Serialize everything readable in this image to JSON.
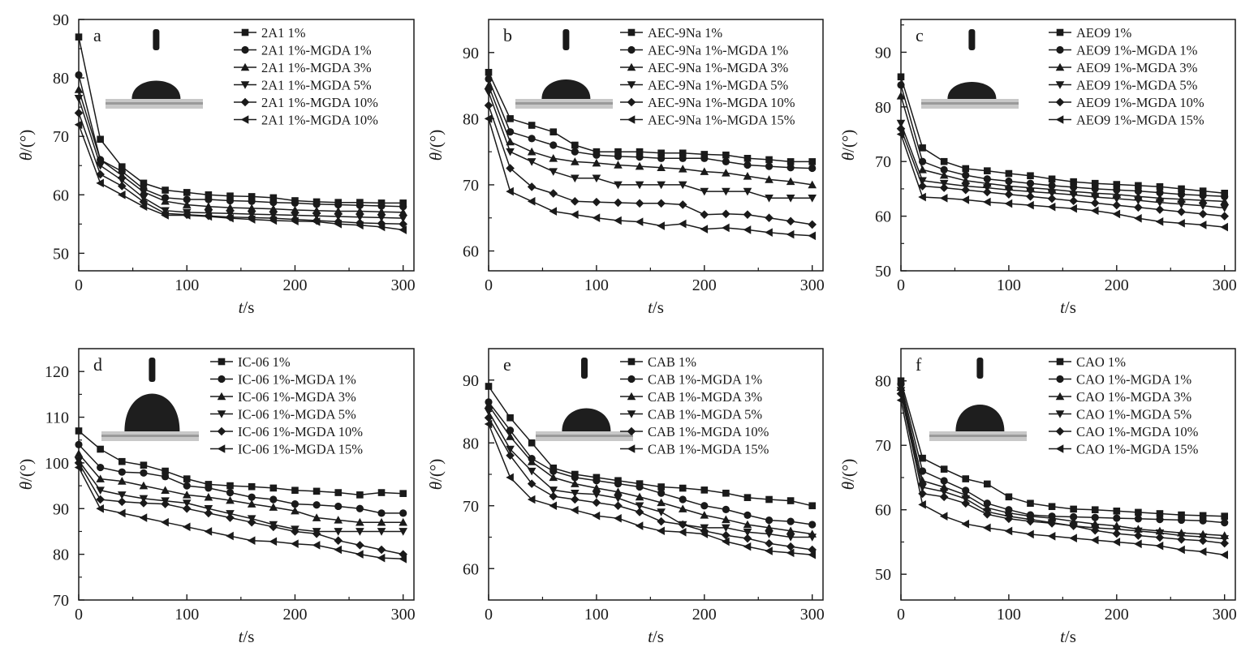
{
  "figure": {
    "panels_order": [
      "a",
      "b",
      "c",
      "d",
      "e",
      "f"
    ]
  },
  "chart_data": [
    {
      "type": "line",
      "panel_letter": "a",
      "xlabel_italic": "t",
      "xlabel_unit": "/s",
      "ylabel_italic": "θ",
      "ylabel_unit": "/(°)",
      "xlim": [
        0,
        310
      ],
      "ylim": [
        47,
        90
      ],
      "xticks": [
        0,
        100,
        200,
        300
      ],
      "yticks": [
        50,
        60,
        70,
        80,
        90
      ],
      "grid": false,
      "legend_position": "top-right",
      "x": [
        0,
        20,
        40,
        60,
        80,
        100,
        120,
        140,
        160,
        180,
        200,
        220,
        240,
        260,
        280,
        300
      ],
      "series": [
        {
          "name": "2A1 1%",
          "marker": "square",
          "values": [
            87,
            69.5,
            64.8,
            62,
            60.8,
            60.4,
            60,
            59.8,
            59.7,
            59.5,
            59,
            58.8,
            58.7,
            58.7,
            58.6,
            58.6
          ]
        },
        {
          "name": "2A1 1%-MGDA 1%",
          "marker": "circle",
          "values": [
            80.5,
            66,
            64,
            61,
            59.5,
            59.2,
            59.2,
            59.0,
            58.9,
            58.7,
            58.6,
            58.4,
            58.3,
            58.2,
            58.1,
            58
          ]
        },
        {
          "name": "2A1 1%-MGDA 3%",
          "marker": "triangle-up",
          "values": [
            78,
            66,
            63.3,
            60.5,
            58.9,
            58.3,
            58,
            57.8,
            57.7,
            57.6,
            57.4,
            57.3,
            57.2,
            57.2,
            57.1,
            57
          ]
        },
        {
          "name": "2A1 1%-MGDA 5%",
          "marker": "triangle-down",
          "values": [
            76.5,
            65,
            62.5,
            59.5,
            57.3,
            57,
            56.9,
            56.8,
            56.7,
            56.6,
            56.5,
            56.4,
            56.3,
            56.2,
            56.1,
            56
          ]
        },
        {
          "name": "2A1 1%-MGDA 10%",
          "marker": "diamond",
          "values": [
            74,
            63.5,
            61.5,
            58.8,
            56.8,
            56.6,
            56.4,
            56.2,
            56.1,
            56,
            55.8,
            55.6,
            55.4,
            55.2,
            55.1,
            55
          ]
        },
        {
          "name": "2A1 1%-MGDA 10%",
          "marker": "triangle-left",
          "values": [
            72,
            62,
            60,
            58,
            56.5,
            56.5,
            56.3,
            56.0,
            55.8,
            55.6,
            55.5,
            55.4,
            55,
            54.8,
            54.5,
            54
          ]
        }
      ]
    },
    {
      "type": "line",
      "panel_letter": "b",
      "xlabel_italic": "t",
      "xlabel_unit": "/s",
      "ylabel_italic": "θ",
      "ylabel_unit": "/(°)",
      "xlim": [
        0,
        310
      ],
      "ylim": [
        57,
        95
      ],
      "xticks": [
        0,
        100,
        200,
        300
      ],
      "yticks": [
        60,
        70,
        80,
        90
      ],
      "grid": false,
      "legend_position": "top-right",
      "x": [
        0,
        20,
        40,
        60,
        80,
        100,
        120,
        140,
        160,
        180,
        200,
        220,
        240,
        260,
        280,
        300
      ],
      "series": [
        {
          "name": "AEC-9Na 1%",
          "marker": "square",
          "values": [
            87,
            80,
            79,
            78,
            76,
            75,
            75,
            75,
            74.8,
            74.8,
            74.6,
            74.5,
            74,
            73.8,
            73.5,
            73.5
          ]
        },
        {
          "name": "AEC-9Na 1%-MGDA 1%",
          "marker": "circle",
          "values": [
            86,
            78,
            77,
            76,
            75,
            74.5,
            74.3,
            74.2,
            74,
            74,
            74,
            73.5,
            73,
            72.8,
            72.6,
            72.5
          ]
        },
        {
          "name": "AEC-9Na 1%-MGDA 3%",
          "marker": "triangle-up",
          "values": [
            85,
            76.5,
            75,
            74,
            73.5,
            73.3,
            73,
            72.8,
            72.6,
            72.4,
            72,
            71.8,
            71.3,
            70.8,
            70.5,
            70
          ]
        },
        {
          "name": "AEC-9Na 1%-MGDA 5%",
          "marker": "triangle-down",
          "values": [
            84,
            75,
            73.5,
            72,
            71,
            71,
            70,
            70,
            70,
            70,
            69,
            69,
            69,
            68,
            68,
            68
          ]
        },
        {
          "name": "AEC-9Na 1%-MGDA 10%",
          "marker": "diamond",
          "values": [
            82,
            72.5,
            69.7,
            68.7,
            67.5,
            67.4,
            67.3,
            67.2,
            67.2,
            67,
            65.5,
            65.6,
            65.5,
            65,
            64.5,
            64
          ]
        },
        {
          "name": "AEC-9Na 1%-MGDA 15%",
          "marker": "triangle-left",
          "values": [
            80,
            69,
            67.5,
            66,
            65.5,
            65,
            64.6,
            64.4,
            63.8,
            64.1,
            63.3,
            63.5,
            63.2,
            62.8,
            62.5,
            62.3
          ]
        }
      ]
    },
    {
      "type": "line",
      "panel_letter": "c",
      "xlabel_italic": "t",
      "xlabel_unit": "/s",
      "ylabel_italic": "θ",
      "ylabel_unit": "/(°)",
      "xlim": [
        0,
        310
      ],
      "ylim": [
        50,
        96
      ],
      "xticks": [
        0,
        100,
        200,
        300
      ],
      "yticks": [
        50,
        60,
        70,
        80,
        90
      ],
      "grid": false,
      "legend_position": "top-right",
      "x": [
        0,
        20,
        40,
        60,
        80,
        100,
        120,
        140,
        160,
        180,
        200,
        220,
        240,
        260,
        280,
        300
      ],
      "series": [
        {
          "name": "AEO9 1%",
          "marker": "square",
          "values": [
            85.5,
            72.5,
            70,
            68.7,
            68.3,
            67.8,
            67.4,
            66.8,
            66.3,
            66,
            65.8,
            65.6,
            65.4,
            65,
            64.6,
            64.2
          ]
        },
        {
          "name": "AEO9 1%-MGDA 1%",
          "marker": "circle",
          "values": [
            84,
            70,
            68.5,
            67.5,
            66.8,
            66.4,
            66,
            65.6,
            65.3,
            65,
            64.8,
            64.6,
            64.3,
            64,
            63.8,
            63.6
          ]
        },
        {
          "name": "AEO9 1%-MGDA 3%",
          "marker": "triangle-up",
          "values": [
            82,
            68.5,
            67.5,
            66.5,
            66,
            65.5,
            65.2,
            64.9,
            64.5,
            64.2,
            64,
            63.6,
            63.3,
            63.1,
            62.9,
            62.7
          ]
        },
        {
          "name": "AEO9 1%-MGDA 5%",
          "marker": "triangle-down",
          "values": [
            77,
            66.5,
            66,
            65.5,
            65.2,
            64.8,
            64.5,
            64.2,
            63.9,
            63.5,
            63.2,
            62.9,
            62.5,
            62.2,
            61.9,
            61.5
          ]
        },
        {
          "name": "AEO9 1%-MGDA 10%",
          "marker": "diamond",
          "values": [
            76,
            65.5,
            65.2,
            64.8,
            64.4,
            64,
            63.6,
            63.2,
            62.8,
            62.4,
            62,
            61.6,
            61.2,
            60.8,
            60.4,
            60
          ]
        },
        {
          "name": "AEO9 1%-MGDA 15%",
          "marker": "triangle-left",
          "values": [
            75,
            63.5,
            63.3,
            63,
            62.6,
            62.3,
            62,
            61.7,
            61.4,
            61,
            60.4,
            59.6,
            59,
            58.7,
            58.4,
            58
          ]
        }
      ]
    },
    {
      "type": "line",
      "panel_letter": "d",
      "xlabel_italic": "t",
      "xlabel_unit": "/s",
      "ylabel_italic": "θ",
      "ylabel_unit": "/(°)",
      "xlim": [
        0,
        310
      ],
      "ylim": [
        70,
        125
      ],
      "xticks": [
        0,
        100,
        200,
        300
      ],
      "yticks": [
        70,
        80,
        90,
        100,
        110,
        120
      ],
      "grid": false,
      "legend_position": "top-right",
      "x": [
        0,
        20,
        40,
        60,
        80,
        100,
        120,
        140,
        160,
        180,
        200,
        220,
        240,
        260,
        280,
        300
      ],
      "series": [
        {
          "name": "IC-06 1%",
          "marker": "square",
          "values": [
            107,
            103,
            100.3,
            99.5,
            98.2,
            96.5,
            95.3,
            95,
            94.8,
            94.5,
            94,
            93.8,
            93.5,
            93,
            93.5,
            93.3
          ]
        },
        {
          "name": "IC-06 1%-MGDA 1%",
          "marker": "circle",
          "values": [
            104,
            99,
            98,
            97.8,
            97,
            95,
            94.5,
            93.5,
            92.5,
            92,
            91,
            90.8,
            90.5,
            90,
            89,
            89
          ]
        },
        {
          "name": "IC-06 1%-MGDA 3%",
          "marker": "triangle-up",
          "values": [
            102,
            96.5,
            96,
            95,
            94,
            93,
            92.5,
            91.8,
            91,
            90.3,
            89.5,
            88,
            87.5,
            87,
            87,
            87
          ]
        },
        {
          "name": "IC-06 1%-MGDA 5%",
          "marker": "triangle-down",
          "values": [
            100.5,
            94,
            93,
            92.2,
            91.7,
            91.2,
            90,
            88.9,
            87.8,
            86.5,
            85.5,
            85,
            85,
            85,
            85,
            85
          ]
        },
        {
          "name": "IC-06 1%-MGDA 10%",
          "marker": "diamond",
          "values": [
            100,
            92,
            91.5,
            91.2,
            91,
            90,
            89,
            88,
            87,
            86,
            85,
            84.5,
            83,
            82,
            81,
            80
          ]
        },
        {
          "name": "IC-06 1%-MGDA 15%",
          "marker": "triangle-left",
          "values": [
            99,
            90,
            89,
            88,
            87,
            86,
            85,
            84,
            83,
            82.8,
            82.3,
            82,
            81,
            80,
            79.2,
            79
          ]
        }
      ]
    },
    {
      "type": "line",
      "panel_letter": "e",
      "xlabel_italic": "t",
      "xlabel_unit": "/s",
      "ylabel_italic": "θ",
      "ylabel_unit": "/(°)",
      "xlim": [
        0,
        310
      ],
      "ylim": [
        55,
        95
      ],
      "xticks": [
        0,
        100,
        200,
        300
      ],
      "yticks": [
        60,
        70,
        80,
        90
      ],
      "grid": false,
      "legend_position": "top-right",
      "x": [
        0,
        20,
        40,
        60,
        80,
        100,
        120,
        140,
        160,
        180,
        200,
        220,
        240,
        260,
        280,
        300
      ],
      "series": [
        {
          "name": "CAB 1%",
          "marker": "square",
          "values": [
            89,
            84,
            80,
            76,
            75,
            74.5,
            74,
            73.5,
            73,
            72.8,
            72.5,
            72,
            71.3,
            71,
            70.8,
            70
          ]
        },
        {
          "name": "CAB 1%-MGDA 1%",
          "marker": "circle",
          "values": [
            86.5,
            82,
            77.5,
            75.5,
            74.5,
            74,
            73.5,
            73,
            72,
            71,
            70,
            69.4,
            68.5,
            67.7,
            67.5,
            67
          ]
        },
        {
          "name": "CAB 1%-MGDA 3%",
          "marker": "triangle-up",
          "values": [
            86,
            81,
            77,
            74.5,
            73.5,
            72.8,
            72.2,
            71.4,
            70.5,
            69.5,
            68.5,
            67.8,
            67,
            66.5,
            66,
            65.5
          ]
        },
        {
          "name": "CAB 1%-MGDA 5%",
          "marker": "triangle-down",
          "values": [
            85,
            79,
            75.5,
            72.5,
            72,
            71.8,
            71.2,
            70,
            69,
            67,
            66.5,
            66.5,
            65.8,
            65.5,
            65,
            65
          ]
        },
        {
          "name": "CAB 1%-MGDA 10%",
          "marker": "diamond",
          "values": [
            84,
            78,
            73.5,
            71.5,
            71,
            70.5,
            70,
            69,
            67.5,
            67,
            66,
            65.3,
            64.8,
            64,
            63.5,
            63
          ]
        },
        {
          "name": "CAB 1%-MGDA 15%",
          "marker": "triangle-left",
          "values": [
            83,
            74.5,
            71,
            70,
            69.3,
            68.4,
            68,
            66.8,
            66,
            65.8,
            65.5,
            64.3,
            63.5,
            62.8,
            62.5,
            62.2
          ]
        }
      ]
    },
    {
      "type": "line",
      "panel_letter": "f",
      "xlabel_italic": "t",
      "xlabel_unit": "/s",
      "ylabel_italic": "θ",
      "ylabel_unit": "/(°)",
      "xlim": [
        0,
        310
      ],
      "ylim": [
        46,
        85
      ],
      "xticks": [
        0,
        100,
        200,
        300
      ],
      "yticks": [
        50,
        60,
        70,
        80
      ],
      "grid": false,
      "legend_position": "top-right",
      "x": [
        0,
        20,
        40,
        60,
        80,
        100,
        120,
        140,
        160,
        180,
        200,
        220,
        240,
        260,
        280,
        300
      ],
      "series": [
        {
          "name": "CAO 1%",
          "marker": "square",
          "values": [
            80,
            68,
            66.3,
            64.8,
            64,
            62,
            61,
            60.5,
            60.1,
            60,
            59.8,
            59.6,
            59.4,
            59.2,
            59.1,
            59
          ]
        },
        {
          "name": "CAO 1%-MGDA 1%",
          "marker": "circle",
          "values": [
            79.5,
            66,
            64.5,
            63,
            61,
            60,
            59.2,
            59,
            58.9,
            58.8,
            58.7,
            58.6,
            58.5,
            58.4,
            58.3,
            58
          ]
        },
        {
          "name": "CAO 1%-MGDA 3%",
          "marker": "triangle-up",
          "values": [
            79,
            64.5,
            63.5,
            62.3,
            60.3,
            59.5,
            59,
            58.7,
            58.2,
            57.8,
            57.5,
            57,
            56.7,
            56.4,
            56.2,
            56
          ]
        },
        {
          "name": "CAO 1%-MGDA 5%",
          "marker": "triangle-down",
          "values": [
            78.5,
            63.5,
            62.8,
            61.7,
            59.7,
            59,
            58.5,
            58,
            57.5,
            57.2,
            57,
            56.7,
            56.4,
            56,
            55.8,
            55.5
          ]
        },
        {
          "name": "CAO 1%-MGDA 10%",
          "marker": "diamond",
          "values": [
            78,
            62.5,
            62,
            61,
            59.3,
            58.6,
            58.2,
            57.9,
            57.5,
            56.8,
            56.3,
            56,
            55.7,
            55.4,
            55.2,
            54.8
          ]
        },
        {
          "name": "CAO 1%-MGDA 15%",
          "marker": "triangle-left",
          "values": [
            77,
            60.8,
            59,
            57.8,
            57.2,
            56.7,
            56.2,
            55.9,
            55.6,
            55.3,
            55,
            54.7,
            54.4,
            53.8,
            53.5,
            53
          ]
        }
      ]
    }
  ]
}
